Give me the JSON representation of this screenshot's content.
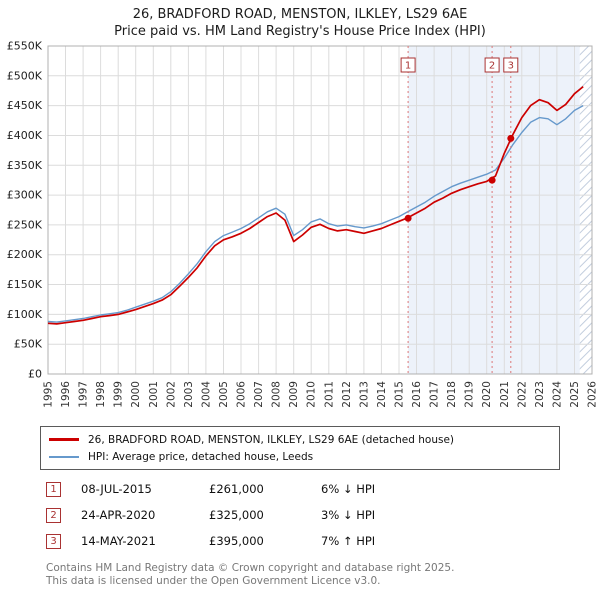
{
  "title": {
    "line1": "26, BRADFORD ROAD, MENSTON, ILKLEY, LS29 6AE",
    "line2": "Price paid vs. HM Land Registry's House Price Index (HPI)"
  },
  "chart_data": {
    "type": "line",
    "title": "26, BRADFORD ROAD, MENSTON, ILKLEY, LS29 6AE",
    "subtitle": "Price paid vs. HM Land Registry's House Price Index (HPI)",
    "x_range": [
      1995,
      2026
    ],
    "y_range": [
      0,
      550
    ],
    "y_unit": "GBP thousands",
    "grid": true,
    "legend_position": "bottom",
    "x_start": 1995,
    "x_step": 0.5,
    "x_ticks": [
      1995,
      1996,
      1997,
      1998,
      1999,
      2000,
      2001,
      2002,
      2003,
      2004,
      2005,
      2006,
      2007,
      2008,
      2009,
      2010,
      2011,
      2012,
      2013,
      2014,
      2015,
      2016,
      2017,
      2018,
      2019,
      2020,
      2021,
      2022,
      2023,
      2024,
      2025,
      2026
    ],
    "y_ticks": [
      0,
      50,
      100,
      150,
      200,
      250,
      300,
      350,
      400,
      450,
      500,
      550
    ],
    "y_tick_labels": [
      "£0",
      "£50K",
      "£100K",
      "£150K",
      "£200K",
      "£250K",
      "£300K",
      "£350K",
      "£400K",
      "£450K",
      "£500K",
      "£550K"
    ],
    "series": [
      {
        "name": "26, BRADFORD ROAD, MENSTON, ILKLEY, LS29 6AE (detached house)",
        "color": "#cc0000",
        "width": 1.7,
        "values": [
          85,
          84,
          86,
          88,
          90,
          93,
          96,
          98,
          100,
          104,
          108,
          113,
          118,
          124,
          133,
          147,
          162,
          178,
          198,
          215,
          225,
          230,
          236,
          244,
          254,
          264,
          270,
          258,
          222,
          233,
          246,
          251,
          244,
          240,
          242,
          239,
          236,
          240,
          244,
          250,
          256,
          262,
          270,
          278,
          288,
          295,
          303,
          309,
          314,
          319,
          323,
          332,
          370,
          402,
          430,
          450,
          460,
          455,
          442,
          452,
          470,
          482
        ]
      },
      {
        "name": "HPI: Average price, detached house, Leeds",
        "color": "#6699cc",
        "width": 1.4,
        "values": [
          88,
          87,
          89,
          91,
          93,
          96,
          99,
          101,
          103,
          107,
          112,
          117,
          122,
          128,
          138,
          152,
          168,
          185,
          205,
          222,
          232,
          238,
          244,
          252,
          262,
          272,
          278,
          268,
          232,
          242,
          255,
          260,
          252,
          248,
          250,
          247,
          245,
          248,
          252,
          258,
          264,
          272,
          280,
          288,
          298,
          306,
          314,
          320,
          325,
          330,
          335,
          342,
          362,
          385,
          405,
          422,
          430,
          428,
          418,
          428,
          442,
          450
        ]
      }
    ],
    "sales": [
      {
        "n": "1",
        "x": 2015.52,
        "y": 261,
        "date": "08-JUL-2015",
        "price": "£261,000",
        "vs_hpi": "6% ↓ HPI"
      },
      {
        "n": "2",
        "x": 2020.31,
        "y": 325,
        "date": "24-APR-2020",
        "price": "£325,000",
        "vs_hpi": "3% ↓ HPI"
      },
      {
        "n": "3",
        "x": 2021.37,
        "y": 395,
        "date": "14-MAY-2021",
        "price": "£395,000",
        "vs_hpi": "7% ↑ HPI"
      }
    ],
    "shaded_region": [
      2015.52,
      2025.3
    ],
    "hatched_region": [
      2025.3,
      2026
    ],
    "colors": {
      "price_line": "#cc0000",
      "hpi_line": "#6699cc",
      "sale_dashed_line": "#dd7777",
      "shade": "#edf2fa",
      "grid": "#dcdcdc",
      "marker": "#cc0000",
      "number_box": "#a93232"
    }
  },
  "legend": {
    "items": [
      {
        "label": "26, BRADFORD ROAD, MENSTON, ILKLEY, LS29 6AE (detached house)",
        "color": "#cc0000"
      },
      {
        "label": "HPI: Average price, detached house, Leeds",
        "color": "#6699cc"
      }
    ]
  },
  "transactions": [
    {
      "num": "1",
      "date": "08-JUL-2015",
      "price": "£261,000",
      "delta": "6% ↓ HPI"
    },
    {
      "num": "2",
      "date": "24-APR-2020",
      "price": "£325,000",
      "delta": "3% ↓ HPI"
    },
    {
      "num": "3",
      "date": "14-MAY-2021",
      "price": "£395,000",
      "delta": "7% ↑ HPI"
    }
  ],
  "footer": {
    "line1": "Contains HM Land Registry data © Crown copyright and database right 2025.",
    "line2": "This data is licensed under the Open Government Licence v3.0."
  }
}
